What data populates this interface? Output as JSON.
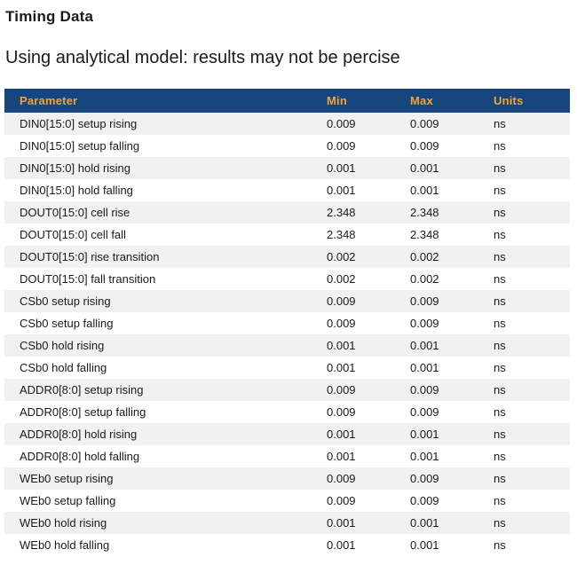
{
  "header": {
    "title": "Timing Data",
    "subtitle": "Using analytical model: results may not be percise"
  },
  "table": {
    "columns": [
      "Parameter",
      "Min",
      "Max",
      "Units"
    ],
    "rows": [
      {
        "parameter": "DIN0[15:0] setup rising",
        "min": "0.009",
        "max": "0.009",
        "units": "ns"
      },
      {
        "parameter": "DIN0[15:0] setup falling",
        "min": "0.009",
        "max": "0.009",
        "units": "ns"
      },
      {
        "parameter": "DIN0[15:0] hold rising",
        "min": "0.001",
        "max": "0.001",
        "units": "ns"
      },
      {
        "parameter": "DIN0[15:0] hold falling",
        "min": "0.001",
        "max": "0.001",
        "units": "ns"
      },
      {
        "parameter": "DOUT0[15:0] cell rise",
        "min": "2.348",
        "max": "2.348",
        "units": "ns"
      },
      {
        "parameter": "DOUT0[15:0] cell fall",
        "min": "2.348",
        "max": "2.348",
        "units": "ns"
      },
      {
        "parameter": "DOUT0[15:0] rise transition",
        "min": "0.002",
        "max": "0.002",
        "units": "ns"
      },
      {
        "parameter": "DOUT0[15:0] fall transition",
        "min": "0.002",
        "max": "0.002",
        "units": "ns"
      },
      {
        "parameter": "CSb0 setup rising",
        "min": "0.009",
        "max": "0.009",
        "units": "ns"
      },
      {
        "parameter": "CSb0 setup falling",
        "min": "0.009",
        "max": "0.009",
        "units": "ns"
      },
      {
        "parameter": "CSb0 hold rising",
        "min": "0.001",
        "max": "0.001",
        "units": "ns"
      },
      {
        "parameter": "CSb0 hold falling",
        "min": "0.001",
        "max": "0.001",
        "units": "ns"
      },
      {
        "parameter": "ADDR0[8:0] setup rising",
        "min": "0.009",
        "max": "0.009",
        "units": "ns"
      },
      {
        "parameter": "ADDR0[8:0] setup falling",
        "min": "0.009",
        "max": "0.009",
        "units": "ns"
      },
      {
        "parameter": "ADDR0[8:0] hold rising",
        "min": "0.001",
        "max": "0.001",
        "units": "ns"
      },
      {
        "parameter": "ADDR0[8:0] hold falling",
        "min": "0.001",
        "max": "0.001",
        "units": "ns"
      },
      {
        "parameter": "WEb0 setup rising",
        "min": "0.009",
        "max": "0.009",
        "units": "ns"
      },
      {
        "parameter": "WEb0 setup falling",
        "min": "0.009",
        "max": "0.009",
        "units": "ns"
      },
      {
        "parameter": "WEb0 hold rising",
        "min": "0.001",
        "max": "0.001",
        "units": "ns"
      },
      {
        "parameter": "WEb0 hold falling",
        "min": "0.001",
        "max": "0.001",
        "units": "ns"
      }
    ]
  },
  "colors": {
    "header_bg": "#17457D",
    "header_text": "#F0A33C",
    "row_alt_bg": "#F0F1F1",
    "body_text": "#1A1A1A"
  }
}
